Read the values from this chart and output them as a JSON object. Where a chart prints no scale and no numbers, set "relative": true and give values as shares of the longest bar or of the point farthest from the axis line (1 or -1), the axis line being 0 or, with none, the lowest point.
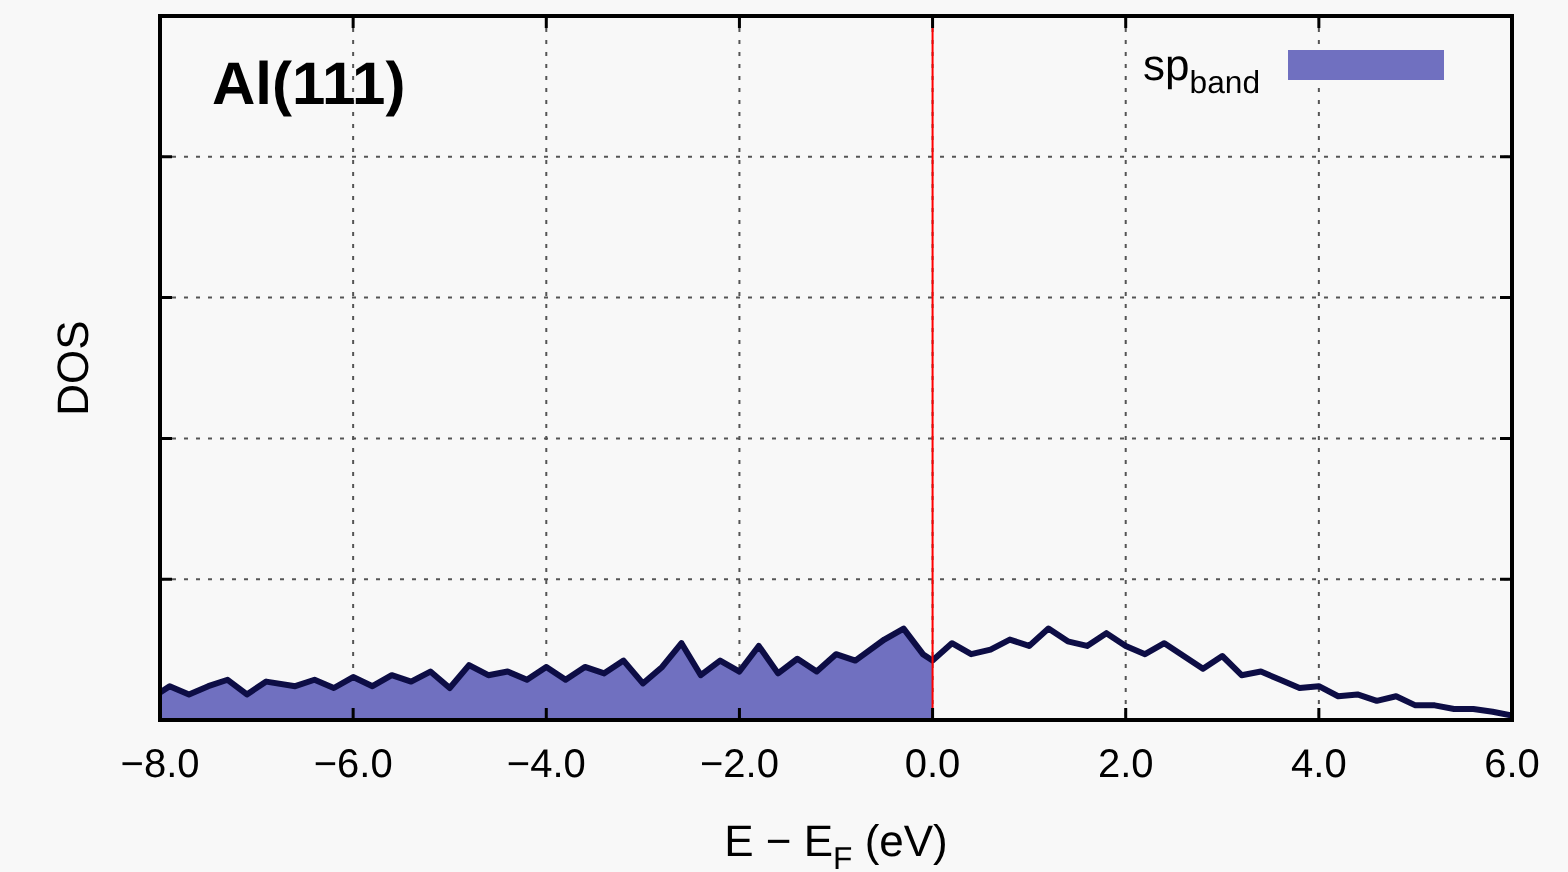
{
  "chart_data": {
    "type": "line",
    "title": "Al(111)",
    "xlabel": "E − E$_{F}$ (eV)",
    "ylabel": "DOS",
    "relative": true,
    "xlim": [
      -8,
      6
    ],
    "xticks": [
      {
        "value": -8,
        "label": "−8.0"
      },
      {
        "value": -6,
        "label": "−6.0"
      },
      {
        "value": -4,
        "label": "−4.0"
      },
      {
        "value": -2,
        "label": "−2.0"
      },
      {
        "value": 0,
        "label": "0.0"
      },
      {
        "value": 2,
        "label": "2.0"
      },
      {
        "value": 4,
        "label": "4.0"
      },
      {
        "value": 6,
        "label": "6.0"
      }
    ],
    "grid": true,
    "legend": "top right",
    "line_style": "solid",
    "marker": "none",
    "ref_lines": [
      {
        "axis": "x",
        "value": 0,
        "color": "#ff0000"
      }
    ],
    "series": [
      {
        "type": "area",
        "name": "sp$_{band}$",
        "color": "#7070c0",
        "x": [
          -8,
          -7.9,
          -7.7,
          -7.5,
          -7.3,
          -7.1,
          -6.9,
          -6.6,
          -6.4,
          -6.2,
          -6,
          -5.8,
          -5.6,
          -5.4,
          -5.2,
          -5,
          -4.8,
          -4.6,
          -4.4,
          -4.2,
          -4,
          -3.8,
          -3.6,
          -3.4,
          -3.2,
          -3,
          -2.8,
          -2.6,
          -2.4,
          -2.2,
          -2,
          -1.8,
          -1.6,
          -1.4,
          -1.2,
          -1,
          -0.8,
          -0.5,
          -0.3,
          -0.1,
          0
        ],
        "values": [
          0.3,
          0.37,
          0.28,
          0.37,
          0.44,
          0.28,
          0.42,
          0.37,
          0.44,
          0.35,
          0.47,
          0.37,
          0.49,
          0.42,
          0.53,
          0.35,
          0.6,
          0.49,
          0.53,
          0.44,
          0.58,
          0.44,
          0.58,
          0.51,
          0.65,
          0.4,
          0.58,
          0.84,
          0.49,
          0.65,
          0.53,
          0.81,
          0.51,
          0.67,
          0.53,
          0.72,
          0.65,
          0.88,
          1,
          0.72,
          0.65
        ]
      },
      {
        "color": "#0d0d45",
        "x": [
          -8,
          -7.9,
          -7.7,
          -7.5,
          -7.3,
          -7.1,
          -6.9,
          -6.6,
          -6.4,
          -6.2,
          -6,
          -5.8,
          -5.6,
          -5.4,
          -5.2,
          -5,
          -4.8,
          -4.6,
          -4.4,
          -4.2,
          -4,
          -3.8,
          -3.6,
          -3.4,
          -3.2,
          -3,
          -2.8,
          -2.6,
          -2.4,
          -2.2,
          -2,
          -1.8,
          -1.6,
          -1.4,
          -1.2,
          -1,
          -0.8,
          -0.5,
          -0.3,
          -0.1,
          0,
          0.2,
          0.4,
          0.6,
          0.8,
          1,
          1.2,
          1.4,
          1.6,
          1.8,
          2,
          2.2,
          2.4,
          2.6,
          2.8,
          3,
          3.2,
          3.4,
          3.6,
          3.8,
          4,
          4.2,
          4.4,
          4.6,
          4.8,
          5,
          5.2,
          5.4,
          5.6,
          5.8,
          6
        ],
        "values": [
          0.3,
          0.37,
          0.28,
          0.37,
          0.44,
          0.28,
          0.42,
          0.37,
          0.44,
          0.35,
          0.47,
          0.37,
          0.49,
          0.42,
          0.53,
          0.35,
          0.6,
          0.49,
          0.53,
          0.44,
          0.58,
          0.44,
          0.58,
          0.51,
          0.65,
          0.4,
          0.58,
          0.84,
          0.49,
          0.65,
          0.53,
          0.81,
          0.51,
          0.67,
          0.53,
          0.72,
          0.65,
          0.88,
          1,
          0.72,
          0.65,
          0.84,
          0.72,
          0.77,
          0.88,
          0.81,
          1,
          0.86,
          0.81,
          0.95,
          0.81,
          0.72,
          0.84,
          0.7,
          0.56,
          0.7,
          0.49,
          0.53,
          0.44,
          0.35,
          0.37,
          0.26,
          0.28,
          0.21,
          0.26,
          0.16,
          0.16,
          0.12,
          0.12,
          0.09,
          0.05
        ]
      }
    ]
  }
}
